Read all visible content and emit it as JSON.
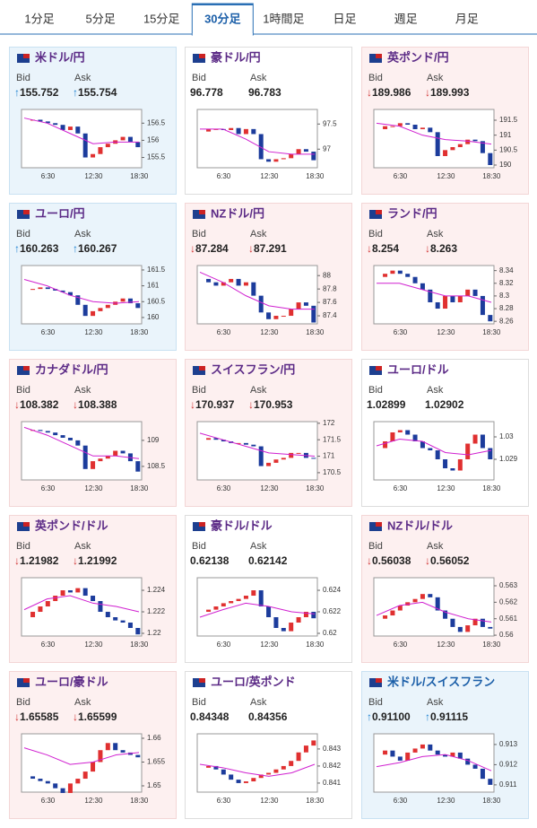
{
  "tabs": [
    "1分足",
    "5分足",
    "15分足",
    "30分足",
    "1時間足",
    "日足",
    "週足",
    "月足"
  ],
  "active_tab": 3,
  "time_ticks": [
    "6:30",
    "12:30",
    "18:30"
  ],
  "bid_label": "Bid",
  "ask_label": "Ask",
  "cards": [
    {
      "name": "米ドル/円",
      "tone": "up",
      "bid_arrow": "↑",
      "bid": "155.752",
      "ask_arrow": "↑",
      "ask": "155.754",
      "ylim": [
        155.2,
        156.9
      ],
      "yticks": [
        155.5,
        156,
        156.5
      ],
      "price": [
        156.6,
        156.6,
        156.55,
        156.5,
        156.45,
        156.3,
        156.4,
        156.2,
        155.5,
        155.6,
        155.8,
        155.9,
        156.0,
        156.1,
        155.95,
        155.8
      ],
      "ma": [
        156.65,
        156.5,
        156.2,
        155.9,
        155.95,
        155.95
      ]
    },
    {
      "name": "豪ドル/円",
      "tone": "flat",
      "bid": "96.778",
      "ask": "96.783",
      "ylim": [
        96.63,
        97.79
      ],
      "yticks": [
        97,
        97.5
      ],
      "price": [
        97.35,
        97.4,
        97.4,
        97.38,
        97.42,
        97.3,
        97.4,
        97.3,
        96.8,
        96.75,
        96.8,
        96.82,
        96.9,
        97.0,
        96.95,
        96.78
      ],
      "ma": [
        97.4,
        97.4,
        97.2,
        96.95,
        96.9,
        96.9
      ]
    },
    {
      "name": "英ポンド/円",
      "tone": "down",
      "bid_arrow": "↓",
      "bid": "189.986",
      "ask_arrow": "↓",
      "ask": "189.993",
      "ylim": [
        189.91,
        191.86
      ],
      "yticks": [
        190,
        190.5,
        191,
        191.5
      ],
      "price": [
        191.2,
        191.3,
        191.3,
        191.4,
        191.35,
        191.2,
        191.25,
        191.1,
        190.3,
        190.5,
        190.6,
        190.7,
        190.85,
        190.8,
        190.4,
        190.0
      ],
      "ma": [
        191.4,
        191.3,
        191.0,
        190.85,
        190.8,
        190.7
      ]
    },
    {
      "name": "ユーロ/円",
      "tone": "up",
      "bid_arrow": "↑",
      "bid": "160.263",
      "ask_arrow": "↑",
      "ask": "160.267",
      "ylim": [
        159.8,
        161.64
      ],
      "yticks": [
        160,
        160.5,
        161,
        161.5
      ],
      "price": [
        160.9,
        160.9,
        160.95,
        160.9,
        160.85,
        160.8,
        160.7,
        160.4,
        160.05,
        160.2,
        160.3,
        160.4,
        160.5,
        160.6,
        160.45,
        160.3
      ],
      "ma": [
        161.2,
        161.0,
        160.7,
        160.5,
        160.45,
        160.5
      ]
    },
    {
      "name": "NZドル/円",
      "tone": "down",
      "bid_arrow": "↓",
      "bid": "87.284",
      "ask_arrow": "↓",
      "ask": "87.291",
      "ylim": [
        87.28,
        88.15
      ],
      "yticks": [
        87.4,
        87.6,
        87.8,
        88
      ],
      "price": [
        87.95,
        87.9,
        87.85,
        87.9,
        87.95,
        87.85,
        87.9,
        87.7,
        87.45,
        87.35,
        87.4,
        87.4,
        87.5,
        87.6,
        87.55,
        87.3
      ],
      "ma": [
        88.05,
        87.9,
        87.7,
        87.55,
        87.5,
        87.5
      ]
    },
    {
      "name": "ランド/円",
      "tone": "down",
      "bid_arrow": "↓",
      "bid": "8.254",
      "ask_arrow": "↓",
      "ask": "8.263",
      "ylim": [
        8.256,
        8.348
      ],
      "yticks": [
        8.26,
        8.28,
        8.3,
        8.32,
        8.34
      ],
      "price": [
        8.33,
        8.335,
        8.34,
        8.335,
        8.33,
        8.32,
        8.31,
        8.29,
        8.28,
        8.3,
        8.29,
        8.3,
        8.31,
        8.3,
        8.27,
        8.26
      ],
      "ma": [
        8.32,
        8.32,
        8.31,
        8.3,
        8.3,
        8.29
      ]
    },
    {
      "name": "カナダドル/円",
      "tone": "down",
      "bid_arrow": "↓",
      "bid": "108.382",
      "ask_arrow": "↓",
      "ask": "108.388",
      "ylim": [
        108.24,
        109.36
      ],
      "yticks": [
        108.5,
        109
      ],
      "price": [
        109.2,
        109.2,
        109.18,
        109.15,
        109.1,
        109.05,
        109.0,
        108.9,
        108.45,
        108.6,
        108.65,
        108.7,
        108.8,
        108.75,
        108.6,
        108.4
      ],
      "ma": [
        109.25,
        109.1,
        108.9,
        108.7,
        108.7,
        108.65
      ]
    },
    {
      "name": "スイスフラン/円",
      "tone": "down",
      "bid_arrow": "↓",
      "bid": "170.937",
      "ask_arrow": "↓",
      "ask": "170.953",
      "ylim": [
        170.28,
        172.05
      ],
      "yticks": [
        170.5,
        171,
        171.5,
        172
      ],
      "price": [
        171.5,
        171.55,
        171.5,
        171.45,
        171.4,
        171.4,
        171.35,
        171.3,
        170.7,
        170.8,
        170.9,
        170.95,
        171.1,
        171.1,
        170.95,
        170.93
      ],
      "ma": [
        171.7,
        171.5,
        171.3,
        171.1,
        171.05,
        171.0
      ]
    },
    {
      "name": "ユーロ/ドル",
      "tone": "flat",
      "bid": "1.02899",
      "ask": "1.02902",
      "ylim": [
        1.02808,
        1.03068
      ],
      "yticks": [
        1.029,
        1.03
      ],
      "price": [
        1.0295,
        1.0298,
        1.0302,
        1.0303,
        1.0301,
        1.0298,
        1.0295,
        1.0294,
        1.029,
        1.0286,
        1.0285,
        1.029,
        1.0297,
        1.0301,
        1.0295,
        1.029
      ],
      "ma": [
        1.0296,
        1.0299,
        1.0298,
        1.0293,
        1.0292,
        1.0294
      ]
    },
    {
      "name": "英ポンド/ドル",
      "tone": "down",
      "bid_arrow": "↓",
      "bid": "1.21982",
      "ask_arrow": "↓",
      "ask": "1.21992",
      "ylim": [
        1.21975,
        1.22517
      ],
      "yticks": [
        1.22,
        1.222,
        1.224
      ],
      "price": [
        1.2215,
        1.222,
        1.2225,
        1.223,
        1.2235,
        1.224,
        1.2238,
        1.2242,
        1.2235,
        1.223,
        1.222,
        1.2215,
        1.2212,
        1.221,
        1.2205,
        1.2199
      ],
      "ma": [
        1.2222,
        1.2232,
        1.2235,
        1.2228,
        1.2225,
        1.222
      ]
    },
    {
      "name": "豪ドル/ドル",
      "tone": "flat",
      "bid": "0.62138",
      "ask": "0.62142",
      "ylim": [
        0.61975,
        0.62517
      ],
      "yticks": [
        0.62,
        0.622,
        0.624
      ],
      "price": [
        0.622,
        0.6222,
        0.6225,
        0.6228,
        0.623,
        0.6232,
        0.6235,
        0.624,
        0.6225,
        0.6215,
        0.6205,
        0.6202,
        0.621,
        0.6215,
        0.622,
        0.6214
      ],
      "ma": [
        0.6215,
        0.6222,
        0.6228,
        0.6225,
        0.622,
        0.6218
      ]
    },
    {
      "name": "NZドル/ドル",
      "tone": "down",
      "bid_arrow": "↓",
      "bid": "0.56038",
      "ask_arrow": "↓",
      "ask": "0.56052",
      "ylim": [
        0.55995,
        0.56349
      ],
      "yticks": [
        0.56,
        0.561,
        0.562,
        0.563
      ],
      "price": [
        0.561,
        0.5612,
        0.5615,
        0.5618,
        0.562,
        0.5622,
        0.5625,
        0.5623,
        0.5615,
        0.561,
        0.5605,
        0.5602,
        0.5606,
        0.561,
        0.5605,
        0.5604
      ],
      "ma": [
        0.5612,
        0.5618,
        0.562,
        0.5614,
        0.561,
        0.5608
      ]
    },
    {
      "name": "ユーロ/豪ドル",
      "tone": "down",
      "bid_arrow": "↓",
      "bid": "1.65585",
      "ask_arrow": "↓",
      "ask": "1.65599",
      "ylim": [
        1.64868,
        1.66094
      ],
      "yticks": [
        1.65,
        1.655,
        1.66
      ],
      "price": [
        1.652,
        1.6515,
        1.651,
        1.6505,
        1.6495,
        1.6485,
        1.6505,
        1.6515,
        1.653,
        1.655,
        1.6575,
        1.659,
        1.6575,
        1.657,
        1.6565,
        1.656
      ],
      "ma": [
        1.658,
        1.6565,
        1.6545,
        1.655,
        1.6565,
        1.657
      ]
    },
    {
      "name": "ユーロ/英ポンド",
      "tone": "flat",
      "bid": "0.84348",
      "ask": "0.84356",
      "ylim": [
        0.84047,
        0.84389
      ],
      "yticks": [
        0.841,
        0.842,
        0.843
      ],
      "price": [
        0.8419,
        0.842,
        0.8418,
        0.8415,
        0.8412,
        0.841,
        0.8411,
        0.8413,
        0.8415,
        0.8416,
        0.8418,
        0.842,
        0.8423,
        0.8428,
        0.8432,
        0.8435
      ],
      "ma": [
        0.8421,
        0.8419,
        0.8416,
        0.8414,
        0.8416,
        0.8421
      ]
    },
    {
      "name": "米ドル/スイスフラン",
      "tone": "up",
      "bid_arrow": "↑",
      "bid": "0.91100",
      "ask_arrow": "↑",
      "ask": "0.91115",
      "ylim": [
        0.91064,
        0.91353
      ],
      "yticks": [
        0.911,
        0.912,
        0.913
      ],
      "price": [
        0.9125,
        0.9127,
        0.9124,
        0.9122,
        0.9126,
        0.9128,
        0.913,
        0.9127,
        0.9125,
        0.9124,
        0.9126,
        0.9123,
        0.912,
        0.9118,
        0.9113,
        0.911
      ],
      "ma": [
        0.9119,
        0.9121,
        0.9124,
        0.9125,
        0.9122,
        0.9117
      ]
    }
  ]
}
